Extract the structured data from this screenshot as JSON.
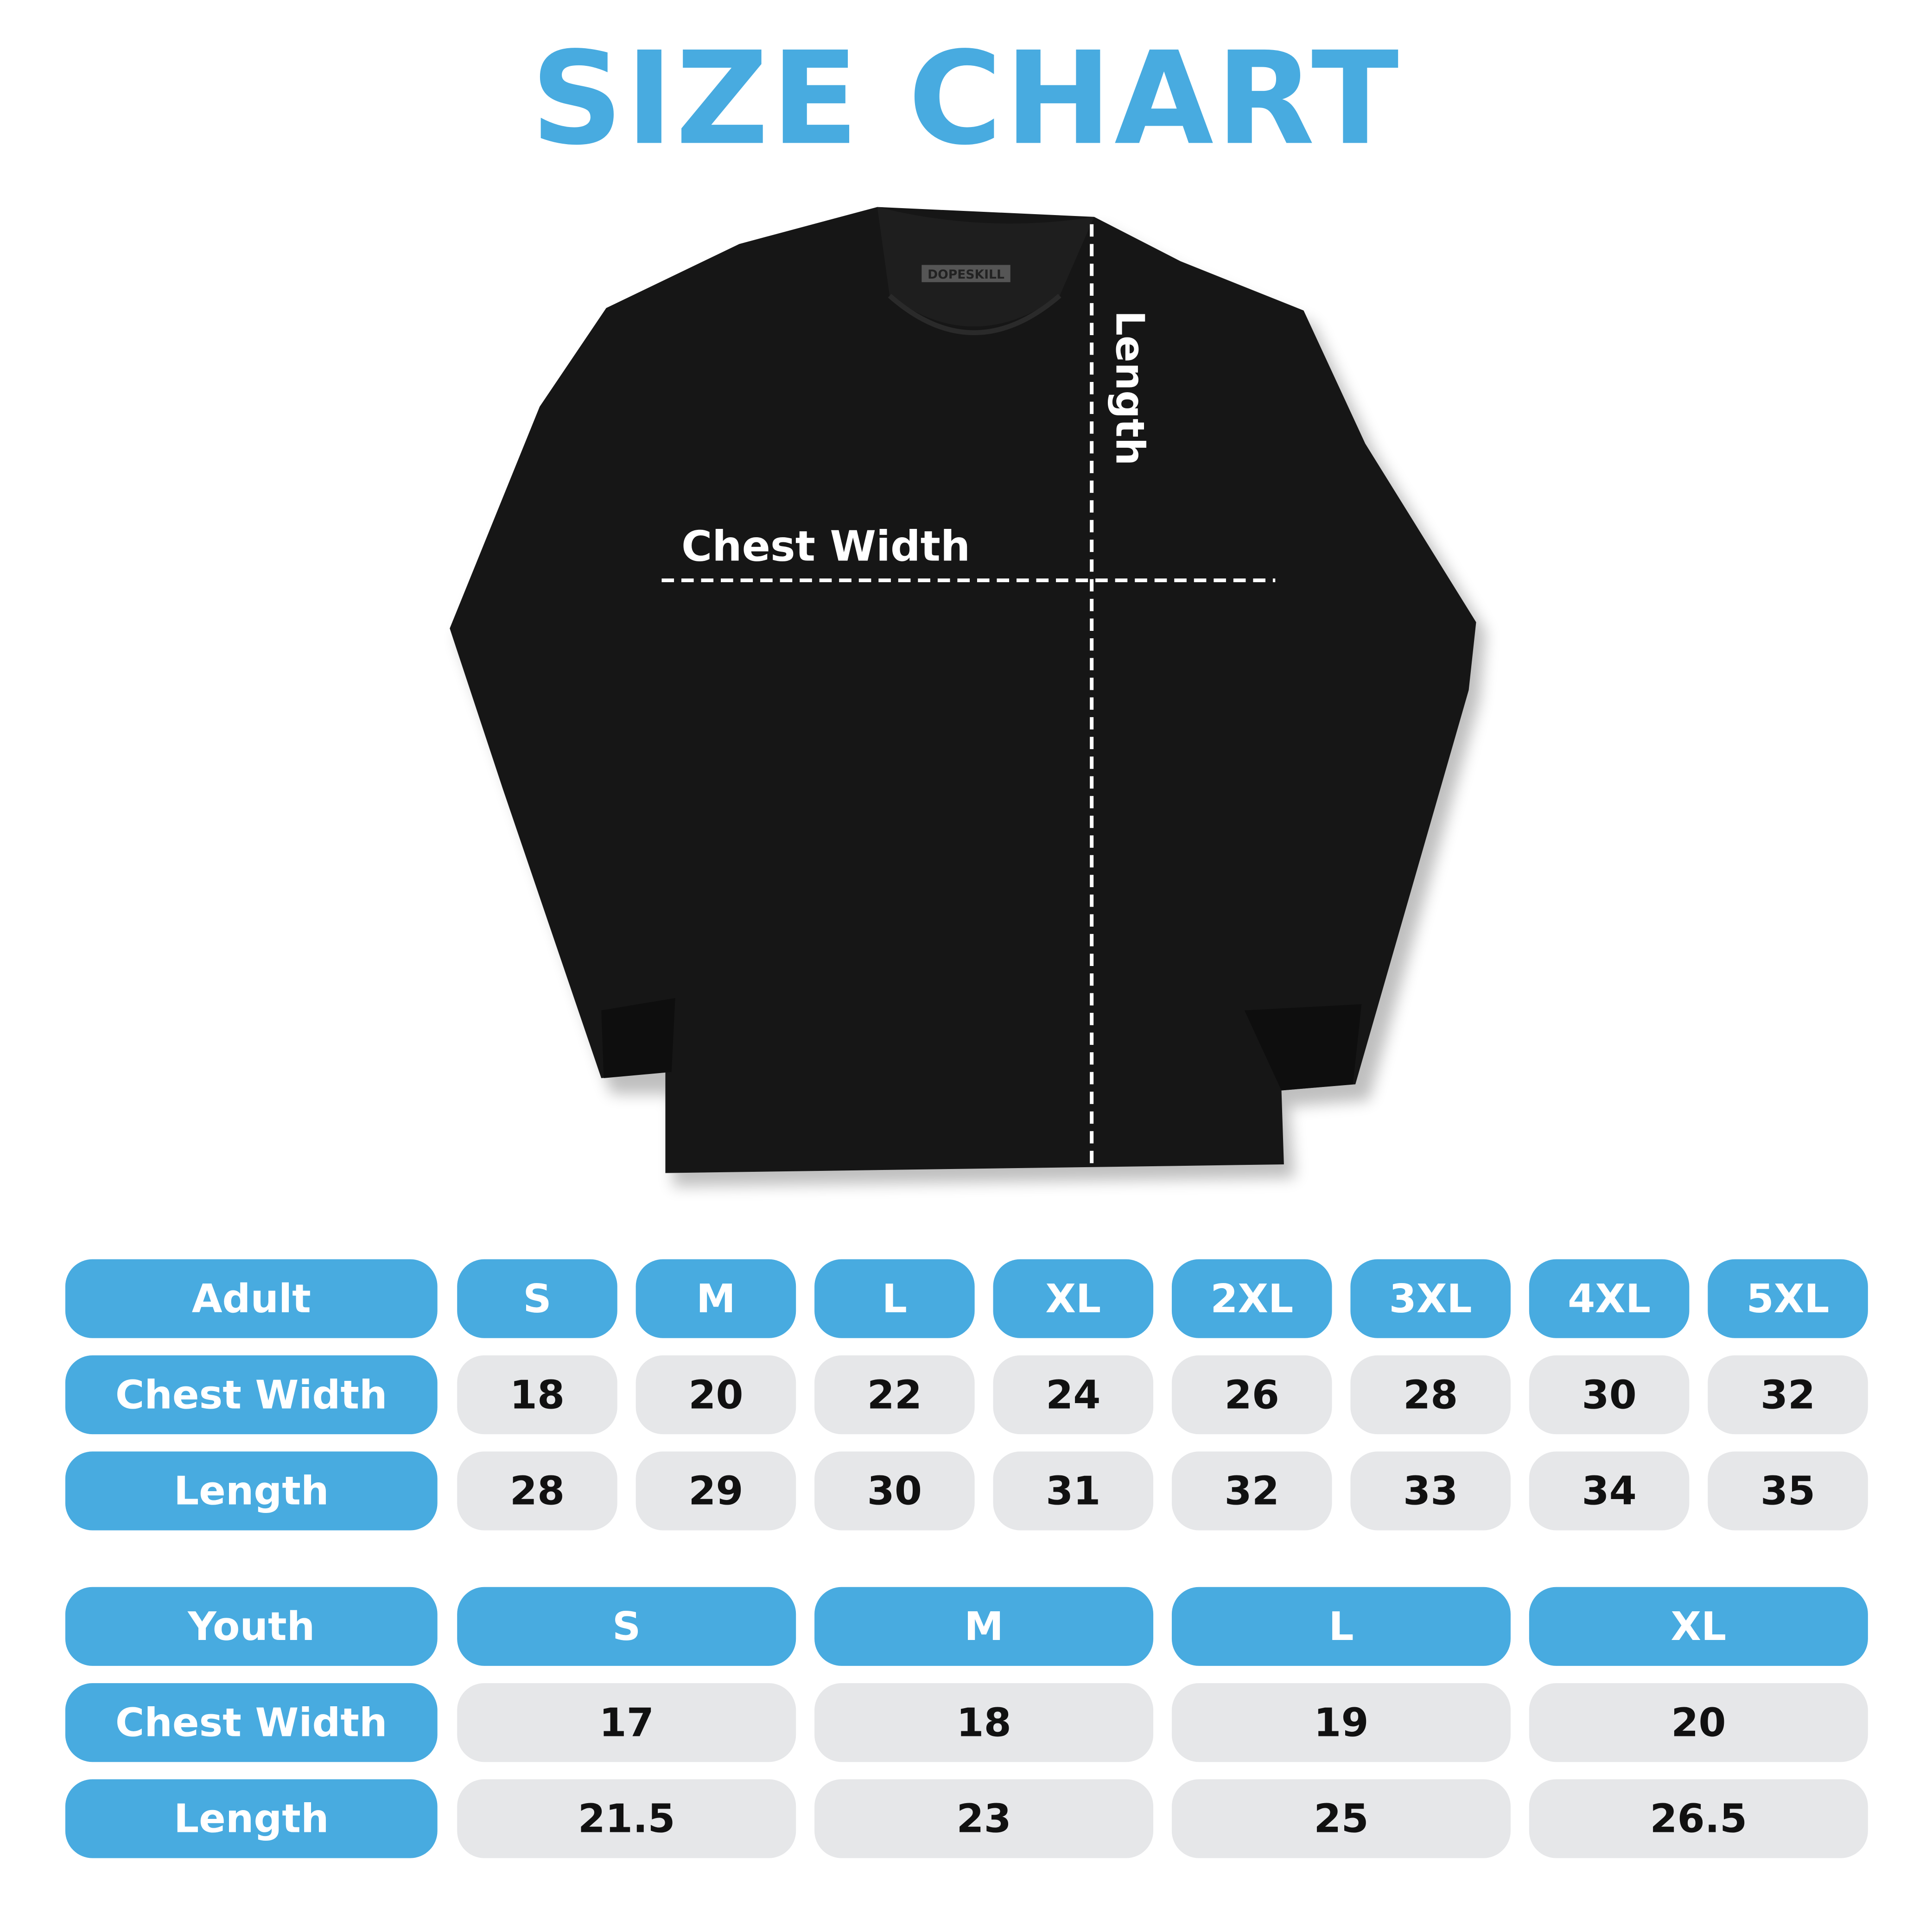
{
  "title": "SIZE CHART",
  "brand_tag": "DOPESKILL",
  "diagram": {
    "chest_label": "Chest Width",
    "length_label": "Length"
  },
  "colors": {
    "accent": "#48ABE0",
    "cell_bg": "#E6E7E9",
    "shirt": "#161616"
  },
  "adult": {
    "header": "Adult",
    "sizes": [
      "S",
      "M",
      "L",
      "XL",
      "2XL",
      "3XL",
      "4XL",
      "5XL"
    ],
    "rows": [
      {
        "label": "Chest Width",
        "values": [
          "18",
          "20",
          "22",
          "24",
          "26",
          "28",
          "30",
          "32"
        ]
      },
      {
        "label": "Length",
        "values": [
          "28",
          "29",
          "30",
          "31",
          "32",
          "33",
          "34",
          "35"
        ]
      }
    ]
  },
  "youth": {
    "header": "Youth",
    "sizes": [
      "S",
      "M",
      "L",
      "XL"
    ],
    "rows": [
      {
        "label": "Chest Width",
        "values": [
          "17",
          "18",
          "19",
          "20"
        ]
      },
      {
        "label": "Length",
        "values": [
          "21.5",
          "23",
          "25",
          "26.5"
        ]
      }
    ]
  }
}
